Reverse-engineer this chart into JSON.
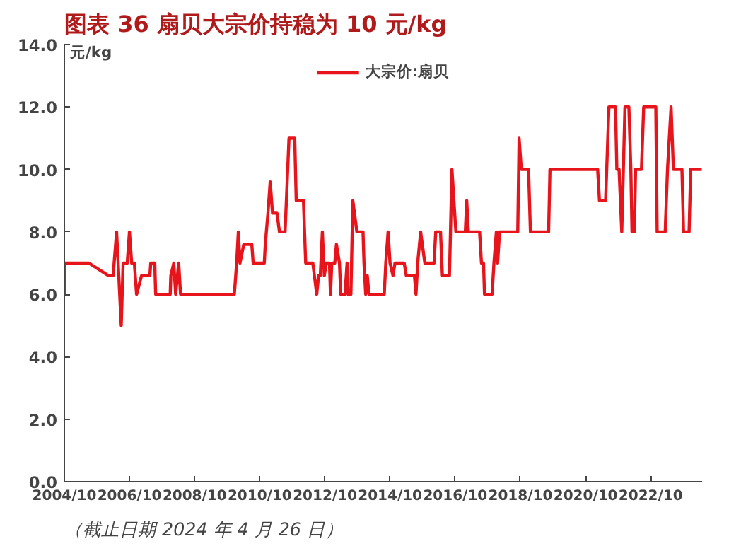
{
  "chart_data": {
    "type": "line",
    "title": "图表 36   扇贝大宗价持稳为 10 元/kg",
    "ylabel": "元/kg",
    "series": [
      {
        "name": "大宗价:扇贝",
        "color": "#e8141c",
        "x": [
          "2004-10-01",
          "2004-10-01",
          "2005-07-04",
          "2006-02-07",
          "2006-04-01",
          "2006-05-10",
          "2006-07-01",
          "2006-07-22",
          "2006-09-06",
          "2006-10-01",
          "2006-10-26",
          "2006-11-25",
          "2006-12-20",
          "2007-02-14",
          "2007-05-18",
          "2007-05-28",
          "2007-07-12",
          "2007-07-22",
          "2008-01-01",
          "2008-01-08",
          "2008-02-10",
          "2008-03-02",
          "2008-04-05",
          "2008-04-26",
          "2009-12-20",
          "2010-01-15",
          "2010-02-03",
          "2010-02-21",
          "2010-04-05",
          "2010-07-04",
          "2010-07-19",
          "2010-11-21",
          "2010-12-02",
          "2011-01-01",
          "2011-01-26",
          "2011-02-21",
          "2011-04-12",
          "2011-05-10",
          "2011-07-12",
          "2011-08-25",
          "2011-10-28",
          "2011-11-14",
          "2012-02-03",
          "2012-02-28",
          "2012-05-18",
          "2012-07-01",
          "2012-07-22",
          "2012-08-10",
          "2012-09-02",
          "2012-09-24",
          "2012-10-15",
          "2012-11-21",
          "2012-12-02",
          "2012-12-17",
          "2013-01-19",
          "2013-02-07",
          "2013-03-13",
          "2013-03-27",
          "2013-05-14",
          "2013-06-06",
          "2013-06-17",
          "2013-07-19",
          "2013-08-10",
          "2013-09-24",
          "2013-12-02",
          "2013-12-13",
          "2014-01-01",
          "2014-01-19",
          "2014-02-07",
          "2014-07-28",
          "2014-08-14",
          "2014-09-09",
          "2014-10-01",
          "2014-11-03",
          "2014-11-25",
          "2015-03-09",
          "2015-04-01",
          "2015-07-01",
          "2015-07-19",
          "2015-08-07",
          "2015-09-09",
          "2015-10-26",
          "2016-02-07",
          "2016-02-25",
          "2016-04-19",
          "2016-05-10",
          "2016-07-28",
          "2016-08-25",
          "2016-10-08",
          "2017-01-22",
          "2017-02-07",
          "2017-02-25",
          "2017-07-01",
          "2017-07-22",
          "2017-08-14",
          "2017-08-25",
          "2017-11-18",
          "2017-12-09",
          "2018-01-05",
          "2018-01-19",
          "2018-02-10",
          "2018-09-02",
          "2018-09-17",
          "2018-10-12",
          "2019-01-01",
          "2019-01-22",
          "2019-08-14",
          "2019-08-29",
          "2021-02-14",
          "2021-03-06",
          "2021-05-14",
          "2021-06-20",
          "2021-09-02",
          "2021-09-17",
          "2021-10-12",
          "2021-11-11",
          "2021-12-17",
          "2022-01-30",
          "2022-02-21",
          "2022-03-06",
          "2022-04-01",
          "2022-04-15",
          "2022-06-20",
          "2022-07-15",
          "2022-11-28",
          "2022-12-13",
          "2023-03-13",
          "2023-04-08",
          "2023-05-18",
          "2023-06-13",
          "2023-09-17",
          "2023-10-05",
          "2023-12-06",
          "2023-12-24",
          "2024-04-26"
        ],
        "values": [
          6,
          7,
          7,
          6.6,
          6.6,
          8,
          5,
          7,
          7,
          8,
          7,
          7,
          6,
          6.6,
          6.6,
          7,
          7,
          6,
          6,
          6.6,
          7,
          6,
          7,
          6,
          6,
          7,
          8,
          7,
          7.6,
          7.6,
          7,
          7,
          7.6,
          8.6,
          9.6,
          8.6,
          8.6,
          8,
          8,
          11,
          11,
          9,
          9,
          7,
          7,
          6,
          6.6,
          6.6,
          8,
          6.6,
          7,
          7,
          6,
          7,
          7,
          7.6,
          7,
          6,
          6,
          7,
          6,
          6,
          9,
          8,
          8,
          7,
          6,
          6.6,
          6,
          6,
          7,
          8,
          7,
          6.6,
          7,
          7,
          6.6,
          6.6,
          6,
          7,
          8,
          7,
          7,
          8,
          8,
          6.6,
          6.6,
          10,
          8,
          8,
          9,
          8,
          8,
          7,
          7,
          6,
          6,
          7,
          8,
          7,
          8,
          8,
          11,
          10,
          10,
          8,
          8,
          10,
          10,
          9,
          9,
          12,
          12,
          10,
          10,
          8,
          12,
          12,
          10,
          8,
          8,
          10,
          10,
          12,
          12,
          8,
          8,
          10,
          12,
          10,
          10,
          8,
          8,
          10,
          10
        ]
      }
    ],
    "xlim": [
      "2004-10-01",
      "2024-04-30"
    ],
    "xticks": [
      {
        "value": "2004-10-01",
        "label": "2004/10"
      },
      {
        "value": "2006-10-01",
        "label": "2006/10"
      },
      {
        "value": "2008-10-01",
        "label": "2008/10"
      },
      {
        "value": "2010-10-01",
        "label": "2010/10"
      },
      {
        "value": "2012-10-01",
        "label": "2012/10"
      },
      {
        "value": "2014-10-01",
        "label": "2014/10"
      },
      {
        "value": "2016-10-01",
        "label": "2016/10"
      },
      {
        "value": "2018-10-01",
        "label": "2018/10"
      },
      {
        "value": "2020-10-01",
        "label": "2020/10"
      },
      {
        "value": "2022-10-01",
        "label": "2022/10"
      }
    ],
    "ylim": [
      0,
      14
    ],
    "yticks": [
      {
        "value": 0,
        "label": "0.0"
      },
      {
        "value": 2,
        "label": "2.0"
      },
      {
        "value": 4,
        "label": "4.0"
      },
      {
        "value": 6,
        "label": "6.0"
      },
      {
        "value": 8,
        "label": "8.0"
      },
      {
        "value": 10,
        "label": "10.0"
      },
      {
        "value": 12,
        "label": "12.0"
      },
      {
        "value": 14,
        "label": "14.0"
      }
    ],
    "grid": false,
    "legend": "top",
    "marker": "none",
    "line_style": "solid",
    "annotations": [
      "（截止日期 2024 年 4 月 26 日）"
    ]
  }
}
